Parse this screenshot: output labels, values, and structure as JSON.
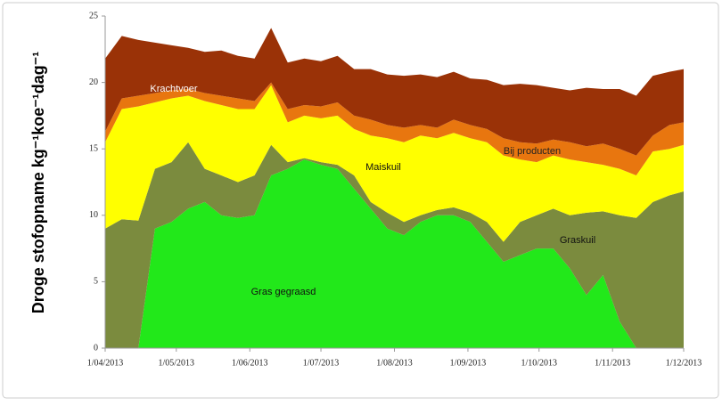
{
  "chart_data": {
    "type": "stacked-area",
    "ylabel": "Droge stofopname kg⁻¹koe⁻¹dag⁻¹",
    "x": [
      "2013-04-01",
      "2013-04-08",
      "2013-04-15",
      "2013-04-22",
      "2013-04-29",
      "2013-05-06",
      "2013-05-13",
      "2013-05-20",
      "2013-05-27",
      "2013-06-03",
      "2013-06-10",
      "2013-06-17",
      "2013-06-24",
      "2013-07-01",
      "2013-07-08",
      "2013-07-15",
      "2013-07-22",
      "2013-07-29",
      "2013-08-05",
      "2013-08-12",
      "2013-08-19",
      "2013-08-26",
      "2013-09-02",
      "2013-09-09",
      "2013-09-16",
      "2013-09-23",
      "2013-09-30",
      "2013-10-07",
      "2013-10-14",
      "2013-10-21",
      "2013-10-28",
      "2013-11-04",
      "2013-11-11",
      "2013-11-18",
      "2013-11-25",
      "2013-12-01"
    ],
    "series": [
      {
        "name": "Gras gegraasd",
        "color": "#22e81a",
        "values": [
          0,
          0,
          0,
          9.0,
          9.5,
          10.5,
          11.0,
          10.0,
          9.8,
          10.0,
          13.0,
          13.5,
          14.2,
          13.8,
          13.5,
          12.0,
          10.5,
          9.0,
          8.5,
          9.5,
          10.0,
          10.0,
          9.5,
          8.0,
          6.5,
          7.0,
          7.5,
          7.5,
          6.0,
          4.0,
          5.5,
          2.0,
          0,
          0,
          0,
          0
        ]
      },
      {
        "name": "Graskuil",
        "color": "#7b8b3e",
        "values": [
          9.0,
          9.7,
          9.6,
          4.5,
          4.5,
          5.0,
          2.5,
          3.0,
          2.7,
          3.0,
          2.3,
          0.5,
          0.1,
          0.2,
          0.3,
          1.0,
          0.5,
          1.2,
          1.0,
          0.5,
          0.4,
          0.6,
          0.7,
          1.5,
          1.5,
          2.5,
          2.5,
          3.0,
          4.0,
          6.2,
          4.8,
          8.0,
          9.8,
          11.0,
          11.5,
          11.8
        ]
      },
      {
        "name": "Maiskuil",
        "color": "#ffff00",
        "values": [
          6.5,
          8.3,
          8.6,
          5.0,
          4.8,
          3.5,
          5.1,
          5.3,
          5.5,
          5.0,
          4.5,
          3.0,
          3.2,
          3.3,
          3.7,
          3.5,
          5.0,
          5.6,
          6.0,
          6.0,
          5.4,
          5.6,
          5.6,
          6.0,
          6.5,
          4.7,
          4.0,
          4.0,
          4.2,
          3.8,
          3.5,
          3.5,
          3.2,
          3.8,
          3.5,
          3.5
        ]
      },
      {
        "name": "Bij producten",
        "color": "#e8760f",
        "values": [
          0.8,
          0.8,
          0.8,
          0.7,
          0.6,
          0.5,
          0.6,
          0.7,
          0.8,
          0.6,
          0.2,
          1.0,
          0.8,
          0.9,
          1.0,
          1.0,
          1.2,
          1.0,
          1.1,
          0.8,
          0.8,
          1.0,
          1.0,
          1.0,
          1.3,
          1.3,
          1.4,
          1.2,
          1.3,
          1.2,
          1.6,
          1.5,
          1.5,
          1.2,
          1.8,
          1.7
        ]
      },
      {
        "name": "Krachtvoer",
        "color": "#9a3207",
        "values": [
          5.5,
          4.7,
          4.2,
          3.8,
          3.4,
          3.1,
          3.1,
          3.4,
          3.2,
          3.2,
          4.1,
          3.5,
          3.5,
          3.4,
          3.5,
          3.5,
          3.8,
          3.8,
          3.9,
          3.8,
          3.8,
          3.6,
          3.5,
          3.7,
          4.0,
          4.4,
          4.4,
          3.9,
          3.9,
          4.4,
          4.1,
          4.5,
          4.5,
          4.5,
          4.0,
          4.0
        ]
      }
    ],
    "xlim": [
      "2013-04-01",
      "2013-12-01"
    ],
    "xticks": [
      {
        "value": "2013-04-01",
        "label": "1/04/2013"
      },
      {
        "value": "2013-05-01",
        "label": "1/05/2013"
      },
      {
        "value": "2013-06-01",
        "label": "1/06/2013"
      },
      {
        "value": "2013-07-01",
        "label": "1/07/2013"
      },
      {
        "value": "2013-08-01",
        "label": "1/08/2013"
      },
      {
        "value": "2013-09-01",
        "label": "1/09/2013"
      },
      {
        "value": "2013-10-01",
        "label": "1/10/2013"
      },
      {
        "value": "2013-11-01",
        "label": "1/11/2013"
      },
      {
        "value": "2013-12-01",
        "label": "1/12/2013"
      }
    ],
    "ylim": [
      0,
      25
    ],
    "yticks": [
      0,
      5,
      10,
      15,
      20,
      25
    ],
    "grid": false
  }
}
